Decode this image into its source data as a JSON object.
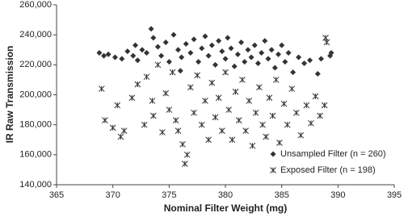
{
  "chart_data": {
    "type": "scatter",
    "xlabel": "Nominal Filter Weight (mg)",
    "ylabel": "IR Raw Transmission",
    "xlim": [
      365,
      395
    ],
    "xticks": [
      365,
      370,
      375,
      380,
      385,
      390,
      395
    ],
    "ylim": [
      140000,
      260000
    ],
    "yticks": [
      {
        "value": 140000,
        "label": "140,000"
      },
      {
        "value": 160000,
        "label": "160,000"
      },
      {
        "value": 180000,
        "label": "180,000"
      },
      {
        "value": 200000,
        "label": "200,000"
      },
      {
        "value": 220000,
        "label": "220,000"
      },
      {
        "value": 240000,
        "label": "240,000"
      },
      {
        "value": 260000,
        "label": "260,000"
      }
    ],
    "grid": false,
    "legend": "lower right",
    "series": [
      {
        "name": "Unsampled Filter (n = 260)",
        "color": "#333333",
        "marker": "diamond",
        "x": [
          368.8,
          369.2,
          369.6,
          370.2,
          370.8,
          371.3,
          371.8,
          372.2,
          372.6,
          373.0,
          373.4,
          373.6,
          374.0,
          374.3,
          374.7,
          375.0,
          375.4,
          375.8,
          376.1,
          376.5,
          376.9,
          377.2,
          377.6,
          377.9,
          378.2,
          378.5,
          378.8,
          379.1,
          379.4,
          379.7,
          380.0,
          380.2,
          380.5,
          380.8,
          381.1,
          381.4,
          381.7,
          382.0,
          382.3,
          382.6,
          382.9,
          383.2,
          383.5,
          383.8,
          384.1,
          384.4,
          384.7,
          385.0,
          385.3,
          385.6,
          386.0,
          386.5,
          387.0,
          387.5,
          388.2,
          388.5,
          389.3,
          389.4,
          372.0,
          376.0
        ],
        "values": [
          228000,
          226000,
          227000,
          225000,
          224000,
          229000,
          226000,
          223000,
          230000,
          228000,
          244000,
          238000,
          232000,
          226000,
          235000,
          222000,
          240000,
          230000,
          225000,
          234000,
          228000,
          237000,
          222000,
          231000,
          239000,
          226000,
          233000,
          220000,
          236000,
          229000,
          224000,
          238000,
          231000,
          219000,
          227000,
          235000,
          222000,
          230000,
          225000,
          233000,
          221000,
          228000,
          236000,
          224000,
          230000,
          218000,
          227000,
          233000,
          222000,
          228000,
          215000,
          225000,
          221000,
          223000,
          214000,
          224000,
          226000,
          228000,
          233000,
          216000
        ]
      },
      {
        "name": "Exposed Filter (n = 198)",
        "color": "#333333",
        "marker": "asterisk",
        "x": [
          369.0,
          369.3,
          370.0,
          370.4,
          370.7,
          371.0,
          371.7,
          372.2,
          372.8,
          373.0,
          373.5,
          373.6,
          374.0,
          374.4,
          374.7,
          375.0,
          375.3,
          375.6,
          375.8,
          376.2,
          376.4,
          376.6,
          376.9,
          377.2,
          377.5,
          377.9,
          378.2,
          378.5,
          378.8,
          379.1,
          379.4,
          379.7,
          380.0,
          380.3,
          380.6,
          380.9,
          381.2,
          381.5,
          381.8,
          382.1,
          382.4,
          382.7,
          383.0,
          383.3,
          383.6,
          383.9,
          384.2,
          384.5,
          384.8,
          385.2,
          385.5,
          385.9,
          386.3,
          386.7,
          387.2,
          387.6,
          388.0,
          388.4,
          388.8,
          388.9,
          389.0
        ],
        "values": [
          204000,
          183000,
          178000,
          193000,
          172000,
          176000,
          198000,
          207000,
          180000,
          212000,
          196000,
          186000,
          220000,
          175000,
          201000,
          190000,
          215000,
          183000,
          176000,
          167000,
          154000,
          160000,
          205000,
          188000,
          213000,
          180000,
          196000,
          170000,
          208000,
          185000,
          198000,
          176000,
          215000,
          190000,
          170000,
          202000,
          183000,
          210000,
          176000,
          196000,
          166000,
          188000,
          205000,
          180000,
          172000,
          198000,
          186000,
          210000,
          168000,
          194000,
          180000,
          204000,
          188000,
          173000,
          193000,
          181000,
          199000,
          186000,
          193000,
          238000,
          235000
        ]
      }
    ]
  }
}
